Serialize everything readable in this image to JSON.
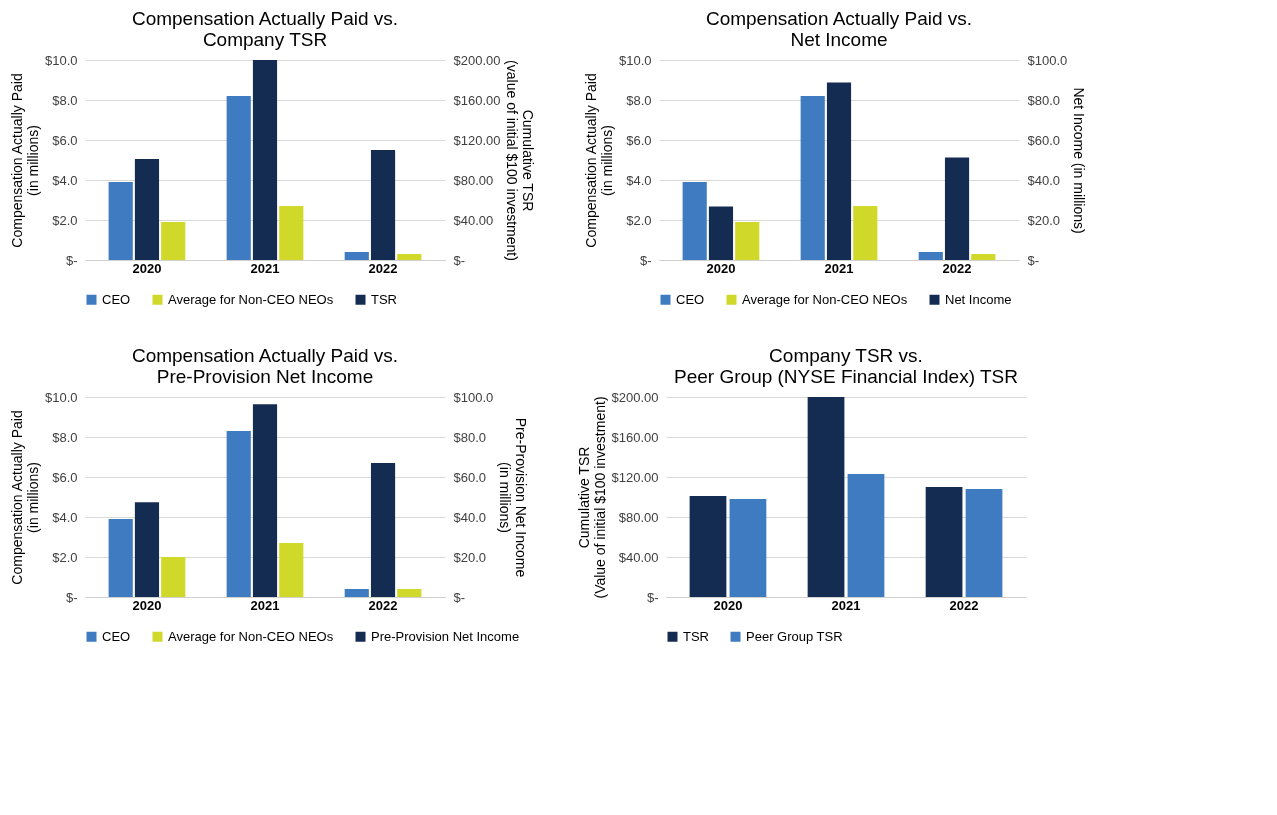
{
  "chart_data": [
    {
      "type": "bar",
      "title": "Compensation Actually Paid vs.\nCompany TSR",
      "ylabel": "Compensation Actually Paid\n(in millions)",
      "y2label": "Cumulative TSR\n(value of initial $100 investment)",
      "categories": [
        "2020",
        "2021",
        "2022"
      ],
      "series": [
        {
          "name": "CEO",
          "color": "#3f7bc1",
          "values": [
            3.9,
            8.2,
            0.4
          ]
        },
        {
          "name": "TSR",
          "color": "#152c52",
          "values": [
            101,
            200,
            110
          ],
          "axis": "y2"
        },
        {
          "name": "Average for Non-CEO NEOs",
          "color": "#d0d92a",
          "values": [
            1.9,
            2.7,
            0.3
          ]
        }
      ],
      "ylim": [
        0,
        10
      ],
      "yticks": [
        {
          "value": 0,
          "label": "$-"
        },
        {
          "value": 2,
          "label": "$2.0"
        },
        {
          "value": 4,
          "label": "$4.0"
        },
        {
          "value": 6,
          "label": "$6.0"
        },
        {
          "value": 8,
          "label": "$8.0"
        },
        {
          "value": 10,
          "label": "$10.0"
        }
      ],
      "y2lim": [
        0,
        200
      ],
      "y2ticks": [
        {
          "value": 0,
          "label": "$-"
        },
        {
          "value": 40,
          "label": "$40.00"
        },
        {
          "value": 80,
          "label": "$80.00"
        },
        {
          "value": 120,
          "label": "$120.00"
        },
        {
          "value": 160,
          "label": "$160.00"
        },
        {
          "value": 200,
          "label": "$200.00"
        }
      ],
      "grid": "y",
      "legend": "bottom"
    },
    {
      "type": "bar",
      "title": "Compensation Actually Paid vs.\nNet Income",
      "ylabel": "Compensation Actually Paid\n(in millions)",
      "y2label": "Net Income (in millions)",
      "categories": [
        "2020",
        "2021",
        "2022"
      ],
      "series": [
        {
          "name": "CEO",
          "color": "#3f7bc1",
          "values": [
            3.9,
            8.2,
            0.4
          ]
        },
        {
          "name": "Net Income",
          "color": "#152c52",
          "values": [
            26.8,
            88.7,
            51.2
          ],
          "axis": "y2"
        },
        {
          "name": "Average for Non-CEO NEOs",
          "color": "#d0d92a",
          "values": [
            1.9,
            2.7,
            0.3
          ]
        }
      ],
      "ylim": [
        0,
        10
      ],
      "yticks": [
        {
          "value": 0,
          "label": "$-"
        },
        {
          "value": 2,
          "label": "$2.0"
        },
        {
          "value": 4,
          "label": "$4.0"
        },
        {
          "value": 6,
          "label": "$6.0"
        },
        {
          "value": 8,
          "label": "$8.0"
        },
        {
          "value": 10,
          "label": "$10.0"
        }
      ],
      "y2lim": [
        0,
        100
      ],
      "y2ticks": [
        {
          "value": 0,
          "label": "$-"
        },
        {
          "value": 20,
          "label": "$20.0"
        },
        {
          "value": 40,
          "label": "$40.0"
        },
        {
          "value": 60,
          "label": "$60.0"
        },
        {
          "value": 80,
          "label": "$80.0"
        },
        {
          "value": 100,
          "label": "$100.0"
        }
      ],
      "grid": "y",
      "legend": "bottom"
    },
    {
      "type": "bar",
      "title": "Compensation Actually Paid vs.\nPre-Provision Net Income",
      "ylabel": "Compensation Actually Paid\n(in millions)",
      "y2label": "Pre-Provision Net Income\n(in millions)",
      "categories": [
        "2020",
        "2021",
        "2022"
      ],
      "series": [
        {
          "name": "CEO",
          "color": "#3f7bc1",
          "values": [
            3.9,
            8.3,
            0.4
          ]
        },
        {
          "name": "Pre-Provision Net Income",
          "color": "#152c52",
          "values": [
            47.4,
            96.4,
            67.0
          ],
          "axis": "y2"
        },
        {
          "name": "Average for Non-CEO NEOs",
          "color": "#d0d92a",
          "values": [
            2.0,
            2.7,
            0.4
          ]
        }
      ],
      "ylim": [
        0,
        10
      ],
      "yticks": [
        {
          "value": 0,
          "label": "$-"
        },
        {
          "value": 2,
          "label": "$2.0"
        },
        {
          "value": 4,
          "label": "$4.0"
        },
        {
          "value": 6,
          "label": "$6.0"
        },
        {
          "value": 8,
          "label": "$8.0"
        },
        {
          "value": 10,
          "label": "$10.0"
        }
      ],
      "y2lim": [
        0,
        100
      ],
      "y2ticks": [
        {
          "value": 0,
          "label": "$-"
        },
        {
          "value": 20,
          "label": "$20.0"
        },
        {
          "value": 40,
          "label": "$40.0"
        },
        {
          "value": 60,
          "label": "$60.0"
        },
        {
          "value": 80,
          "label": "$80.0"
        },
        {
          "value": 100,
          "label": "$100.0"
        }
      ],
      "grid": "y",
      "legend": "bottom"
    },
    {
      "type": "bar",
      "title": "Company TSR vs.\nPeer Group (NYSE Financial Index) TSR",
      "ylabel": "Cumulative TSR\n(Value of initial $100 investment)",
      "categories": [
        "2020",
        "2021",
        "2022"
      ],
      "series": [
        {
          "name": "TSR",
          "color": "#152c52",
          "values": [
            101,
            200,
            110
          ]
        },
        {
          "name": "Peer Group TSR",
          "color": "#3f7bc1",
          "values": [
            98,
            123,
            108
          ]
        }
      ],
      "ylim": [
        0,
        200
      ],
      "yticks": [
        {
          "value": 0,
          "label": "$-"
        },
        {
          "value": 40,
          "label": "$40.00"
        },
        {
          "value": 80,
          "label": "$80.00"
        },
        {
          "value": 120,
          "label": "$120.00"
        },
        {
          "value": 160,
          "label": "$160.00"
        },
        {
          "value": 200,
          "label": "$200.00"
        }
      ],
      "grid": "y",
      "legend": "bottom"
    }
  ]
}
